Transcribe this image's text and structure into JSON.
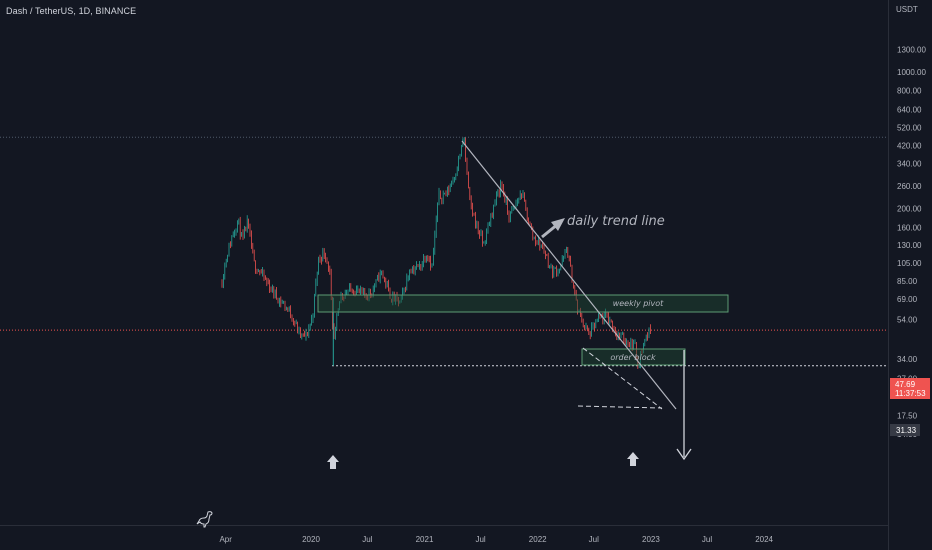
{
  "header": {
    "symbol": "Dash / TetherUS, 1D, BINANCE"
  },
  "axis": {
    "currency": "USDT"
  },
  "colors": {
    "background": "#131722",
    "up": "#26a69a",
    "down": "#ef5350",
    "annotation": "#b2b5be",
    "zone_fill": "#1e4a34",
    "zone_border": "#5d9b74",
    "price_line": "#ef5350"
  },
  "chart_data": {
    "type": "candlestick",
    "y_scale": "log",
    "ylim": [
      12.5,
      1560
    ],
    "x_ticks": [
      "Apr",
      "2020",
      "Jul",
      "2021",
      "Jul",
      "2022",
      "Jul",
      "2023",
      "Jul",
      "2024"
    ],
    "y_ticks": [
      "1300.00",
      "1000.00",
      "800.00",
      "640.00",
      "520.00",
      "420.00",
      "340.00",
      "260.00",
      "200.00",
      "160.00",
      "130.00",
      "105.00",
      "85.00",
      "69.00",
      "54.00",
      "34.00",
      "27.00",
      "22.00",
      "17.50",
      "14.00"
    ],
    "price_path": [
      {
        "x": "2019-03-20",
        "price": 85
      },
      {
        "x": "2019-04-01",
        "price": 110
      },
      {
        "x": "2019-04-25",
        "price": 150
      },
      {
        "x": "2019-05-10",
        "price": 175
      },
      {
        "x": "2019-05-25",
        "price": 135
      },
      {
        "x": "2019-06-10",
        "price": 170
      },
      {
        "x": "2019-07-01",
        "price": 105
      },
      {
        "x": "2019-07-20",
        "price": 95
      },
      {
        "x": "2019-08-20",
        "price": 80
      },
      {
        "x": "2019-09-15",
        "price": 70
      },
      {
        "x": "2019-10-15",
        "price": 62
      },
      {
        "x": "2019-11-05",
        "price": 55
      },
      {
        "x": "2019-11-25",
        "price": 45
      },
      {
        "x": "2019-12-15",
        "price": 44
      },
      {
        "x": "2020-01-05",
        "price": 55
      },
      {
        "x": "2020-01-25",
        "price": 110
      },
      {
        "x": "2020-02-15",
        "price": 120
      },
      {
        "x": "2020-03-01",
        "price": 95
      },
      {
        "x": "2020-03-13",
        "price": 40
      },
      {
        "x": "2020-04-05",
        "price": 72
      },
      {
        "x": "2020-05-15",
        "price": 78
      },
      {
        "x": "2020-06-20",
        "price": 72
      },
      {
        "x": "2020-07-15",
        "price": 75
      },
      {
        "x": "2020-08-15",
        "price": 95
      },
      {
        "x": "2020-09-15",
        "price": 70
      },
      {
        "x": "2020-10-15",
        "price": 66
      },
      {
        "x": "2020-11-15",
        "price": 98
      },
      {
        "x": "2020-12-15",
        "price": 100
      },
      {
        "x": "2021-01-10",
        "price": 120
      },
      {
        "x": "2021-01-25",
        "price": 100
      },
      {
        "x": "2021-02-15",
        "price": 230
      },
      {
        "x": "2021-03-15",
        "price": 240
      },
      {
        "x": "2021-04-15",
        "price": 320
      },
      {
        "x": "2021-05-08",
        "price": 460
      },
      {
        "x": "2021-05-25",
        "price": 220
      },
      {
        "x": "2021-06-15",
        "price": 170
      },
      {
        "x": "2021-07-10",
        "price": 130
      },
      {
        "x": "2021-08-10",
        "price": 200
      },
      {
        "x": "2021-09-05",
        "price": 270
      },
      {
        "x": "2021-10-01",
        "price": 180
      },
      {
        "x": "2021-11-10",
        "price": 240
      },
      {
        "x": "2021-12-15",
        "price": 145
      },
      {
        "x": "2022-01-20",
        "price": 125
      },
      {
        "x": "2022-02-15",
        "price": 95
      },
      {
        "x": "2022-03-15",
        "price": 100
      },
      {
        "x": "2022-04-05",
        "price": 125
      },
      {
        "x": "2022-05-10",
        "price": 60
      },
      {
        "x": "2022-06-15",
        "price": 45
      },
      {
        "x": "2022-07-15",
        "price": 54
      },
      {
        "x": "2022-08-15",
        "price": 56
      },
      {
        "x": "2022-09-15",
        "price": 45
      },
      {
        "x": "2022-10-15",
        "price": 42
      },
      {
        "x": "2022-11-10",
        "price": 40
      },
      {
        "x": "2022-11-20",
        "price": 32
      },
      {
        "x": "2022-12-15",
        "price": 44
      },
      {
        "x": "2022-12-31",
        "price": 47.69
      }
    ],
    "current_price": {
      "value": 47.69,
      "label": "47.69",
      "countdown": "11:37:53"
    },
    "level_marker": {
      "value": 31.33,
      "label": "31.33"
    },
    "annotations": {
      "trend_line_label": "daily trend line",
      "weekly_pivot": "weekly pivot",
      "order_block": "order block"
    }
  }
}
